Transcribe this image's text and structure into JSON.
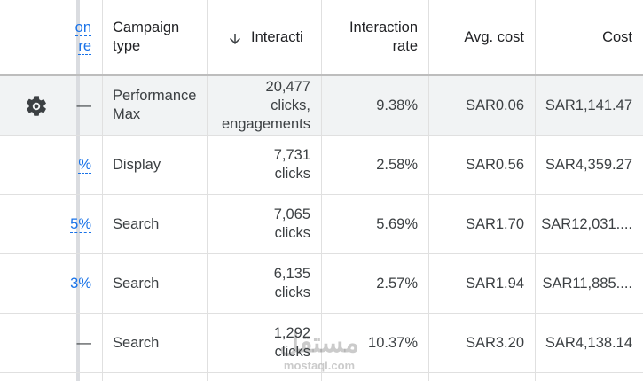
{
  "header": {
    "columns": [
      [
        "on",
        "re"
      ],
      [
        "Campaign",
        "type"
      ],
      [
        "Interacti"
      ],
      [
        "Interaction",
        "rate"
      ],
      [
        "Avg. cost"
      ],
      [
        "Cost"
      ]
    ]
  },
  "table": {
    "rows": [
      [
        [
          "—"
        ],
        [
          "Performance",
          "Max"
        ],
        [
          "20,477",
          "clicks,",
          "engagements"
        ],
        [
          "9.38%"
        ],
        [
          "SAR0.06"
        ],
        [
          "SAR1,141.47"
        ]
      ],
      [
        [
          "%"
        ],
        [
          "Display"
        ],
        [
          "7,731",
          "clicks"
        ],
        [
          "2.58%"
        ],
        [
          "SAR0.56"
        ],
        [
          "SAR4,359.27"
        ]
      ],
      [
        [
          "5%"
        ],
        [
          "Search"
        ],
        [
          "7,065",
          "clicks"
        ],
        [
          "5.69%"
        ],
        [
          "SAR1.70"
        ],
        [
          "SAR12,031...."
        ]
      ],
      [
        [
          "3%"
        ],
        [
          "Search"
        ],
        [
          "6,135",
          "clicks"
        ],
        [
          "2.57%"
        ],
        [
          "SAR1.94"
        ],
        [
          "SAR11,885...."
        ]
      ],
      [
        [
          "—"
        ],
        [
          "Search"
        ],
        [
          "1,292",
          "clicks"
        ],
        [
          "10.37%"
        ],
        [
          "SAR3.20"
        ],
        [
          "SAR4,138.14"
        ]
      ]
    ]
  },
  "watermark": [
    "مستقل",
    "mostaql.com"
  ]
}
